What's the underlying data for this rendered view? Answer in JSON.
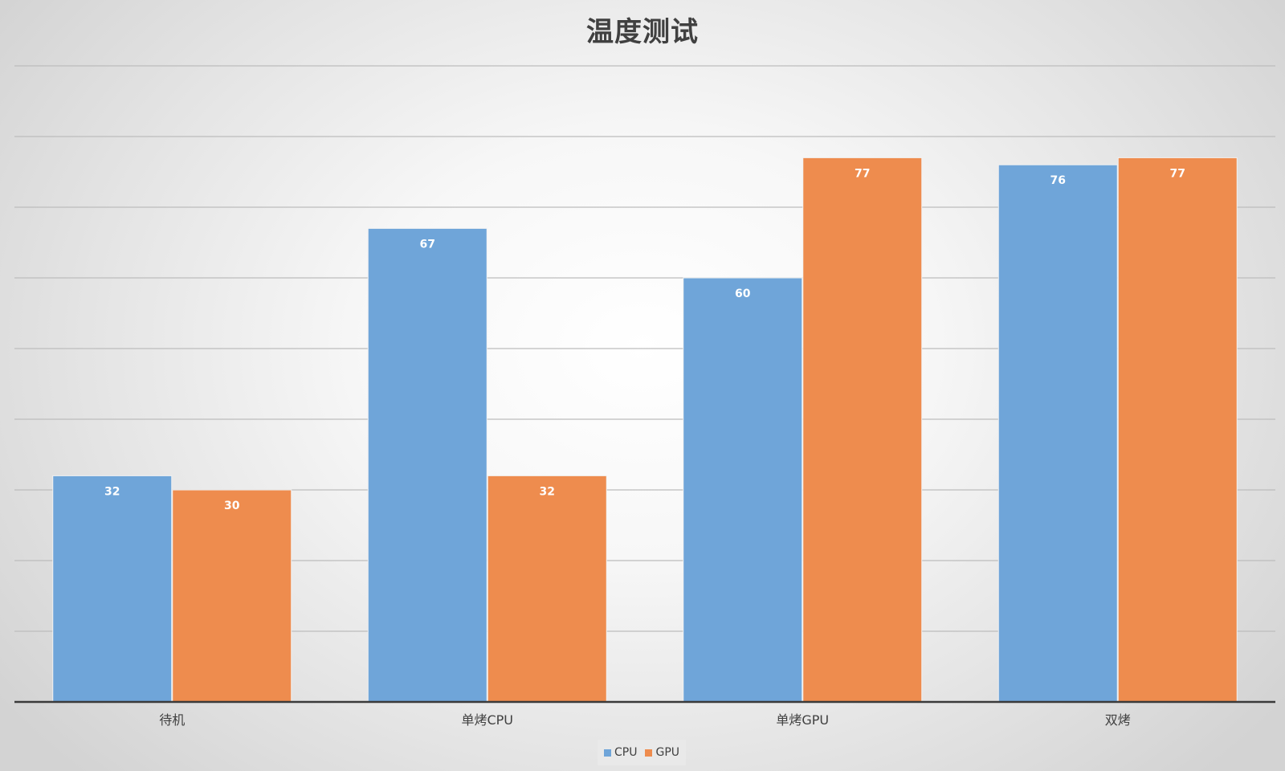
{
  "chart_data": {
    "type": "bar",
    "title": "温度测试",
    "xlabel": "",
    "ylabel": "",
    "categories": [
      "待机",
      "单烤CPU",
      "单烤GPU",
      "双烤"
    ],
    "series": [
      {
        "name": "CPU",
        "color": "#6fa5d9",
        "values": [
          32,
          67,
          60,
          76
        ]
      },
      {
        "name": "GPU",
        "color": "#ee8c4e",
        "values": [
          30,
          32,
          77,
          77
        ]
      }
    ],
    "ylim": [
      0,
      90
    ],
    "grid": true,
    "legend": "bottom-center",
    "data_labels": true
  }
}
